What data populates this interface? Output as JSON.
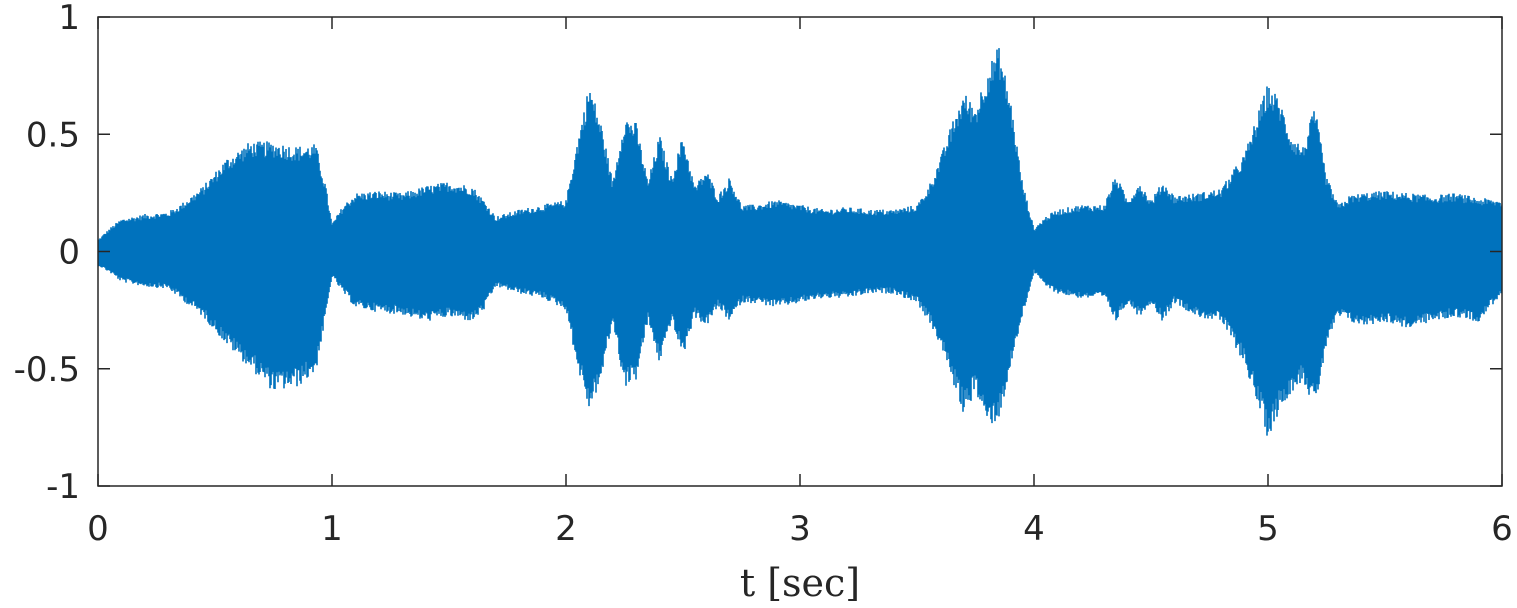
{
  "chart_data": {
    "type": "line",
    "title": "",
    "xlabel": "t [sec]",
    "ylabel": "",
    "xlim": [
      0,
      6
    ],
    "ylim": [
      -1,
      1
    ],
    "grid": false,
    "x_ticks": [
      0,
      1,
      2,
      3,
      4,
      5,
      6
    ],
    "x_tick_labels": [
      "0",
      "1",
      "2",
      "3",
      "4",
      "5",
      "6"
    ],
    "y_ticks": [
      1,
      0.5,
      0,
      -0.5,
      -1
    ],
    "y_tick_labels": [
      "1",
      "0.5",
      "0",
      "-0.5",
      "-1"
    ],
    "series": [
      {
        "color": "#0072BD",
        "envelope": {
          "t": [
            0.0,
            0.05,
            0.1,
            0.2,
            0.3,
            0.35,
            0.45,
            0.55,
            0.65,
            0.75,
            0.85,
            0.93,
            0.97,
            1.0,
            1.05,
            1.1,
            1.2,
            1.3,
            1.4,
            1.5,
            1.6,
            1.65,
            1.7,
            1.8,
            1.9,
            2.0,
            2.05,
            2.1,
            2.15,
            2.2,
            2.25,
            2.3,
            2.35,
            2.4,
            2.45,
            2.5,
            2.55,
            2.6,
            2.65,
            2.7,
            2.75,
            2.8,
            2.9,
            3.0,
            3.1,
            3.2,
            3.3,
            3.4,
            3.5,
            3.55,
            3.6,
            3.65,
            3.7,
            3.75,
            3.8,
            3.85,
            3.9,
            3.95,
            4.0,
            4.05,
            4.1,
            4.2,
            4.3,
            4.35,
            4.4,
            4.45,
            4.5,
            4.55,
            4.6,
            4.7,
            4.8,
            4.9,
            5.0,
            5.05,
            5.1,
            5.15,
            5.2,
            5.25,
            5.3,
            5.35,
            5.4,
            5.5,
            5.6,
            5.7,
            5.8,
            5.9,
            6.0
          ],
          "upper": [
            0.05,
            0.1,
            0.14,
            0.16,
            0.17,
            0.2,
            0.28,
            0.4,
            0.47,
            0.47,
            0.45,
            0.46,
            0.3,
            0.12,
            0.2,
            0.25,
            0.26,
            0.25,
            0.28,
            0.3,
            0.28,
            0.22,
            0.15,
            0.18,
            0.2,
            0.22,
            0.48,
            0.72,
            0.55,
            0.3,
            0.58,
            0.55,
            0.3,
            0.5,
            0.32,
            0.5,
            0.28,
            0.35,
            0.24,
            0.32,
            0.2,
            0.2,
            0.22,
            0.2,
            0.18,
            0.19,
            0.18,
            0.18,
            0.2,
            0.28,
            0.4,
            0.55,
            0.68,
            0.62,
            0.78,
            0.88,
            0.65,
            0.3,
            0.1,
            0.15,
            0.18,
            0.2,
            0.2,
            0.33,
            0.22,
            0.3,
            0.22,
            0.3,
            0.24,
            0.25,
            0.27,
            0.42,
            0.72,
            0.65,
            0.5,
            0.45,
            0.62,
            0.32,
            0.2,
            0.24,
            0.25,
            0.26,
            0.25,
            0.24,
            0.25,
            0.23,
            0.22
          ],
          "lower": [
            -0.06,
            -0.09,
            -0.13,
            -0.15,
            -0.16,
            -0.2,
            -0.28,
            -0.4,
            -0.5,
            -0.6,
            -0.58,
            -0.52,
            -0.3,
            -0.11,
            -0.18,
            -0.24,
            -0.26,
            -0.27,
            -0.3,
            -0.28,
            -0.3,
            -0.25,
            -0.15,
            -0.18,
            -0.2,
            -0.25,
            -0.5,
            -0.68,
            -0.55,
            -0.3,
            -0.58,
            -0.55,
            -0.3,
            -0.48,
            -0.3,
            -0.45,
            -0.28,
            -0.32,
            -0.24,
            -0.3,
            -0.22,
            -0.22,
            -0.24,
            -0.22,
            -0.2,
            -0.2,
            -0.18,
            -0.18,
            -0.22,
            -0.3,
            -0.4,
            -0.55,
            -0.7,
            -0.6,
            -0.75,
            -0.72,
            -0.5,
            -0.28,
            -0.09,
            -0.15,
            -0.18,
            -0.2,
            -0.2,
            -0.3,
            -0.22,
            -0.28,
            -0.22,
            -0.3,
            -0.22,
            -0.28,
            -0.3,
            -0.48,
            -0.8,
            -0.68,
            -0.6,
            -0.55,
            -0.68,
            -0.4,
            -0.28,
            -0.3,
            -0.32,
            -0.3,
            -0.33,
            -0.3,
            -0.28,
            -0.3,
            -0.18
          ]
        }
      }
    ]
  }
}
